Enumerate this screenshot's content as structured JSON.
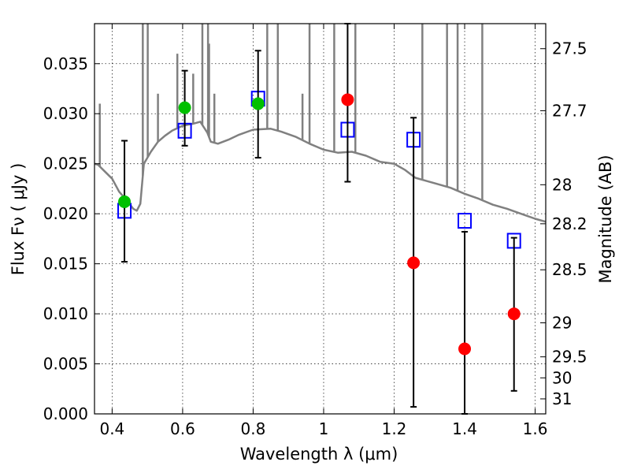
{
  "chart_data": {
    "type": "scatter",
    "xlabel": "Wavelength  λ (μm)",
    "ylabel": "Flux  Fν  ( μJy )",
    "y2label": "Magnitude (AB)",
    "xlim": [
      0.35,
      1.63
    ],
    "ylim": [
      0.0,
      0.039
    ],
    "grid": true,
    "x_ticks": [
      0.4,
      0.6,
      0.8,
      1.0,
      1.2,
      1.4,
      1.6
    ],
    "x_tick_labels": [
      "0.4",
      "0.6",
      "0.8",
      "1",
      "1.2",
      "1.4",
      "1.6"
    ],
    "y_ticks": [
      0.0,
      0.005,
      0.01,
      0.015,
      0.02,
      0.025,
      0.03,
      0.035
    ],
    "y_tick_labels": [
      "0.000",
      "0.005",
      "0.010",
      "0.015",
      "0.020",
      "0.025",
      "0.030",
      "0.035"
    ],
    "y2_ticks": [
      {
        "label": "27.5",
        "flux": 0.0365
      },
      {
        "label": "27.7",
        "flux": 0.0303
      },
      {
        "label": "28",
        "flux": 0.0229
      },
      {
        "label": "28.2",
        "flux": 0.019
      },
      {
        "label": "28.5",
        "flux": 0.0144
      },
      {
        "label": "29",
        "flux": 0.0091
      },
      {
        "label": "29.5",
        "flux": 0.0057
      },
      {
        "label": "30",
        "flux": 0.0036
      },
      {
        "label": "31",
        "flux": 0.0015
      }
    ],
    "model_series": [
      {
        "color": "#808080",
        "points": [
          [
            0.35,
            0.025
          ],
          [
            0.36,
            0.0249
          ],
          [
            0.38,
            0.0242
          ],
          [
            0.4,
            0.0235
          ],
          [
            0.42,
            0.0222
          ],
          [
            0.44,
            0.0214
          ],
          [
            0.46,
            0.0205
          ],
          [
            0.47,
            0.0203
          ],
          [
            0.48,
            0.021
          ],
          [
            0.49,
            0.025
          ],
          [
            0.51,
            0.0262
          ],
          [
            0.53,
            0.0272
          ],
          [
            0.55,
            0.0278
          ],
          [
            0.57,
            0.0283
          ],
          [
            0.6,
            0.0288
          ],
          [
            0.63,
            0.029
          ],
          [
            0.65,
            0.0292
          ],
          [
            0.67,
            0.0281
          ],
          [
            0.68,
            0.0272
          ],
          [
            0.7,
            0.027
          ],
          [
            0.73,
            0.0274
          ],
          [
            0.76,
            0.0279
          ],
          [
            0.8,
            0.0284
          ],
          [
            0.85,
            0.0285
          ],
          [
            0.88,
            0.0282
          ],
          [
            0.92,
            0.0277
          ],
          [
            0.96,
            0.027
          ],
          [
            1.0,
            0.0264
          ],
          [
            1.04,
            0.0261
          ],
          [
            1.08,
            0.0262
          ],
          [
            1.12,
            0.0258
          ],
          [
            1.16,
            0.0252
          ],
          [
            1.2,
            0.025
          ],
          [
            1.23,
            0.0244
          ],
          [
            1.26,
            0.0236
          ],
          [
            1.29,
            0.0233
          ],
          [
            1.32,
            0.023
          ],
          [
            1.36,
            0.0226
          ],
          [
            1.4,
            0.022
          ],
          [
            1.44,
            0.0215
          ],
          [
            1.48,
            0.0209
          ],
          [
            1.52,
            0.0205
          ],
          [
            1.56,
            0.02
          ],
          [
            1.6,
            0.0195
          ],
          [
            1.63,
            0.0192
          ]
        ]
      }
    ],
    "model_spikes": [
      {
        "x": 0.365,
        "y": 0.031
      },
      {
        "x": 0.487,
        "y": 0.039
      },
      {
        "x": 0.501,
        "y": 0.039
      },
      {
        "x": 0.53,
        "y": 0.032
      },
      {
        "x": 0.585,
        "y": 0.036
      },
      {
        "x": 0.63,
        "y": 0.034
      },
      {
        "x": 0.656,
        "y": 0.039
      },
      {
        "x": 0.672,
        "y": 0.039
      },
      {
        "x": 0.675,
        "y": 0.037
      },
      {
        "x": 0.69,
        "y": 0.032
      },
      {
        "x": 0.84,
        "y": 0.039
      },
      {
        "x": 0.87,
        "y": 0.039
      },
      {
        "x": 0.94,
        "y": 0.032
      },
      {
        "x": 0.96,
        "y": 0.039
      },
      {
        "x": 1.03,
        "y": 0.039
      },
      {
        "x": 1.09,
        "y": 0.039
      },
      {
        "x": 1.28,
        "y": 0.039
      },
      {
        "x": 1.35,
        "y": 0.039
      },
      {
        "x": 1.38,
        "y": 0.039
      },
      {
        "x": 1.45,
        "y": 0.039
      }
    ],
    "model_boxes": [
      {
        "x": 0.435,
        "y": 0.0203,
        "color": "#0000ff"
      },
      {
        "x": 0.606,
        "y": 0.0283,
        "color": "#0000ff"
      },
      {
        "x": 0.814,
        "y": 0.0315,
        "color": "#0000ff"
      },
      {
        "x": 1.068,
        "y": 0.0284,
        "color": "#0000ff"
      },
      {
        "x": 1.255,
        "y": 0.0274,
        "color": "#0000ff"
      },
      {
        "x": 1.4,
        "y": 0.0193,
        "color": "#0000ff"
      },
      {
        "x": 1.54,
        "y": 0.0173,
        "color": "#0000ff"
      }
    ],
    "observations": [
      {
        "x": 0.435,
        "y": 0.0212,
        "yerr_low": 0.0152,
        "yerr_high": 0.0273,
        "color": "#00c000"
      },
      {
        "x": 0.606,
        "y": 0.0306,
        "yerr_low": 0.0268,
        "yerr_high": 0.0343,
        "color": "#00c000"
      },
      {
        "x": 0.814,
        "y": 0.031,
        "yerr_low": 0.0256,
        "yerr_high": 0.0363,
        "color": "#00c000"
      },
      {
        "x": 1.068,
        "y": 0.0314,
        "yerr_low": 0.0232,
        "yerr_high": 0.039,
        "color": "#ff0000"
      },
      {
        "x": 1.255,
        "y": 0.0151,
        "yerr_low": 0.0007,
        "yerr_high": 0.0296,
        "color": "#ff0000"
      },
      {
        "x": 1.4,
        "y": 0.0065,
        "yerr_low": 0.0,
        "yerr_high": 0.0182,
        "color": "#ff0000"
      },
      {
        "x": 1.54,
        "y": 0.01,
        "yerr_low": 0.0023,
        "yerr_high": 0.0176,
        "color": "#ff0000"
      }
    ]
  }
}
